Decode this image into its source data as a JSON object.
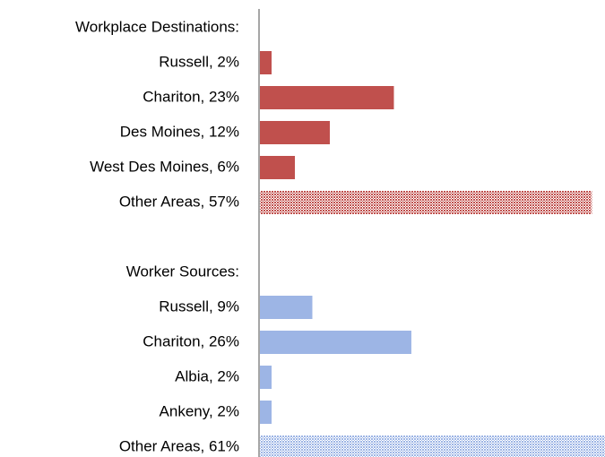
{
  "chart_data": {
    "type": "bar",
    "orientation": "horizontal",
    "xlim": [
      0,
      59.4
    ],
    "groups": [
      {
        "title": "Workplace Destinations:",
        "color": "#c0504d",
        "categories": [
          "Russell, 2%",
          "Chariton, 23%",
          "Des Moines, 12%",
          "West Des Moines, 6%",
          "Other Areas, 57%"
        ],
        "values": [
          2,
          23,
          12,
          6,
          57
        ],
        "patterned": [
          false,
          false,
          false,
          false,
          true
        ]
      },
      {
        "title": "Worker Sources:",
        "color": "#9db5e5",
        "categories": [
          "Russell, 9%",
          "Chariton, 26%",
          "Albia, 2%",
          "Ankeny, 2%",
          "Other Areas, 61%"
        ],
        "values": [
          9,
          26,
          2,
          2,
          61
        ],
        "patterned": [
          false,
          false,
          false,
          false,
          true
        ]
      }
    ]
  }
}
